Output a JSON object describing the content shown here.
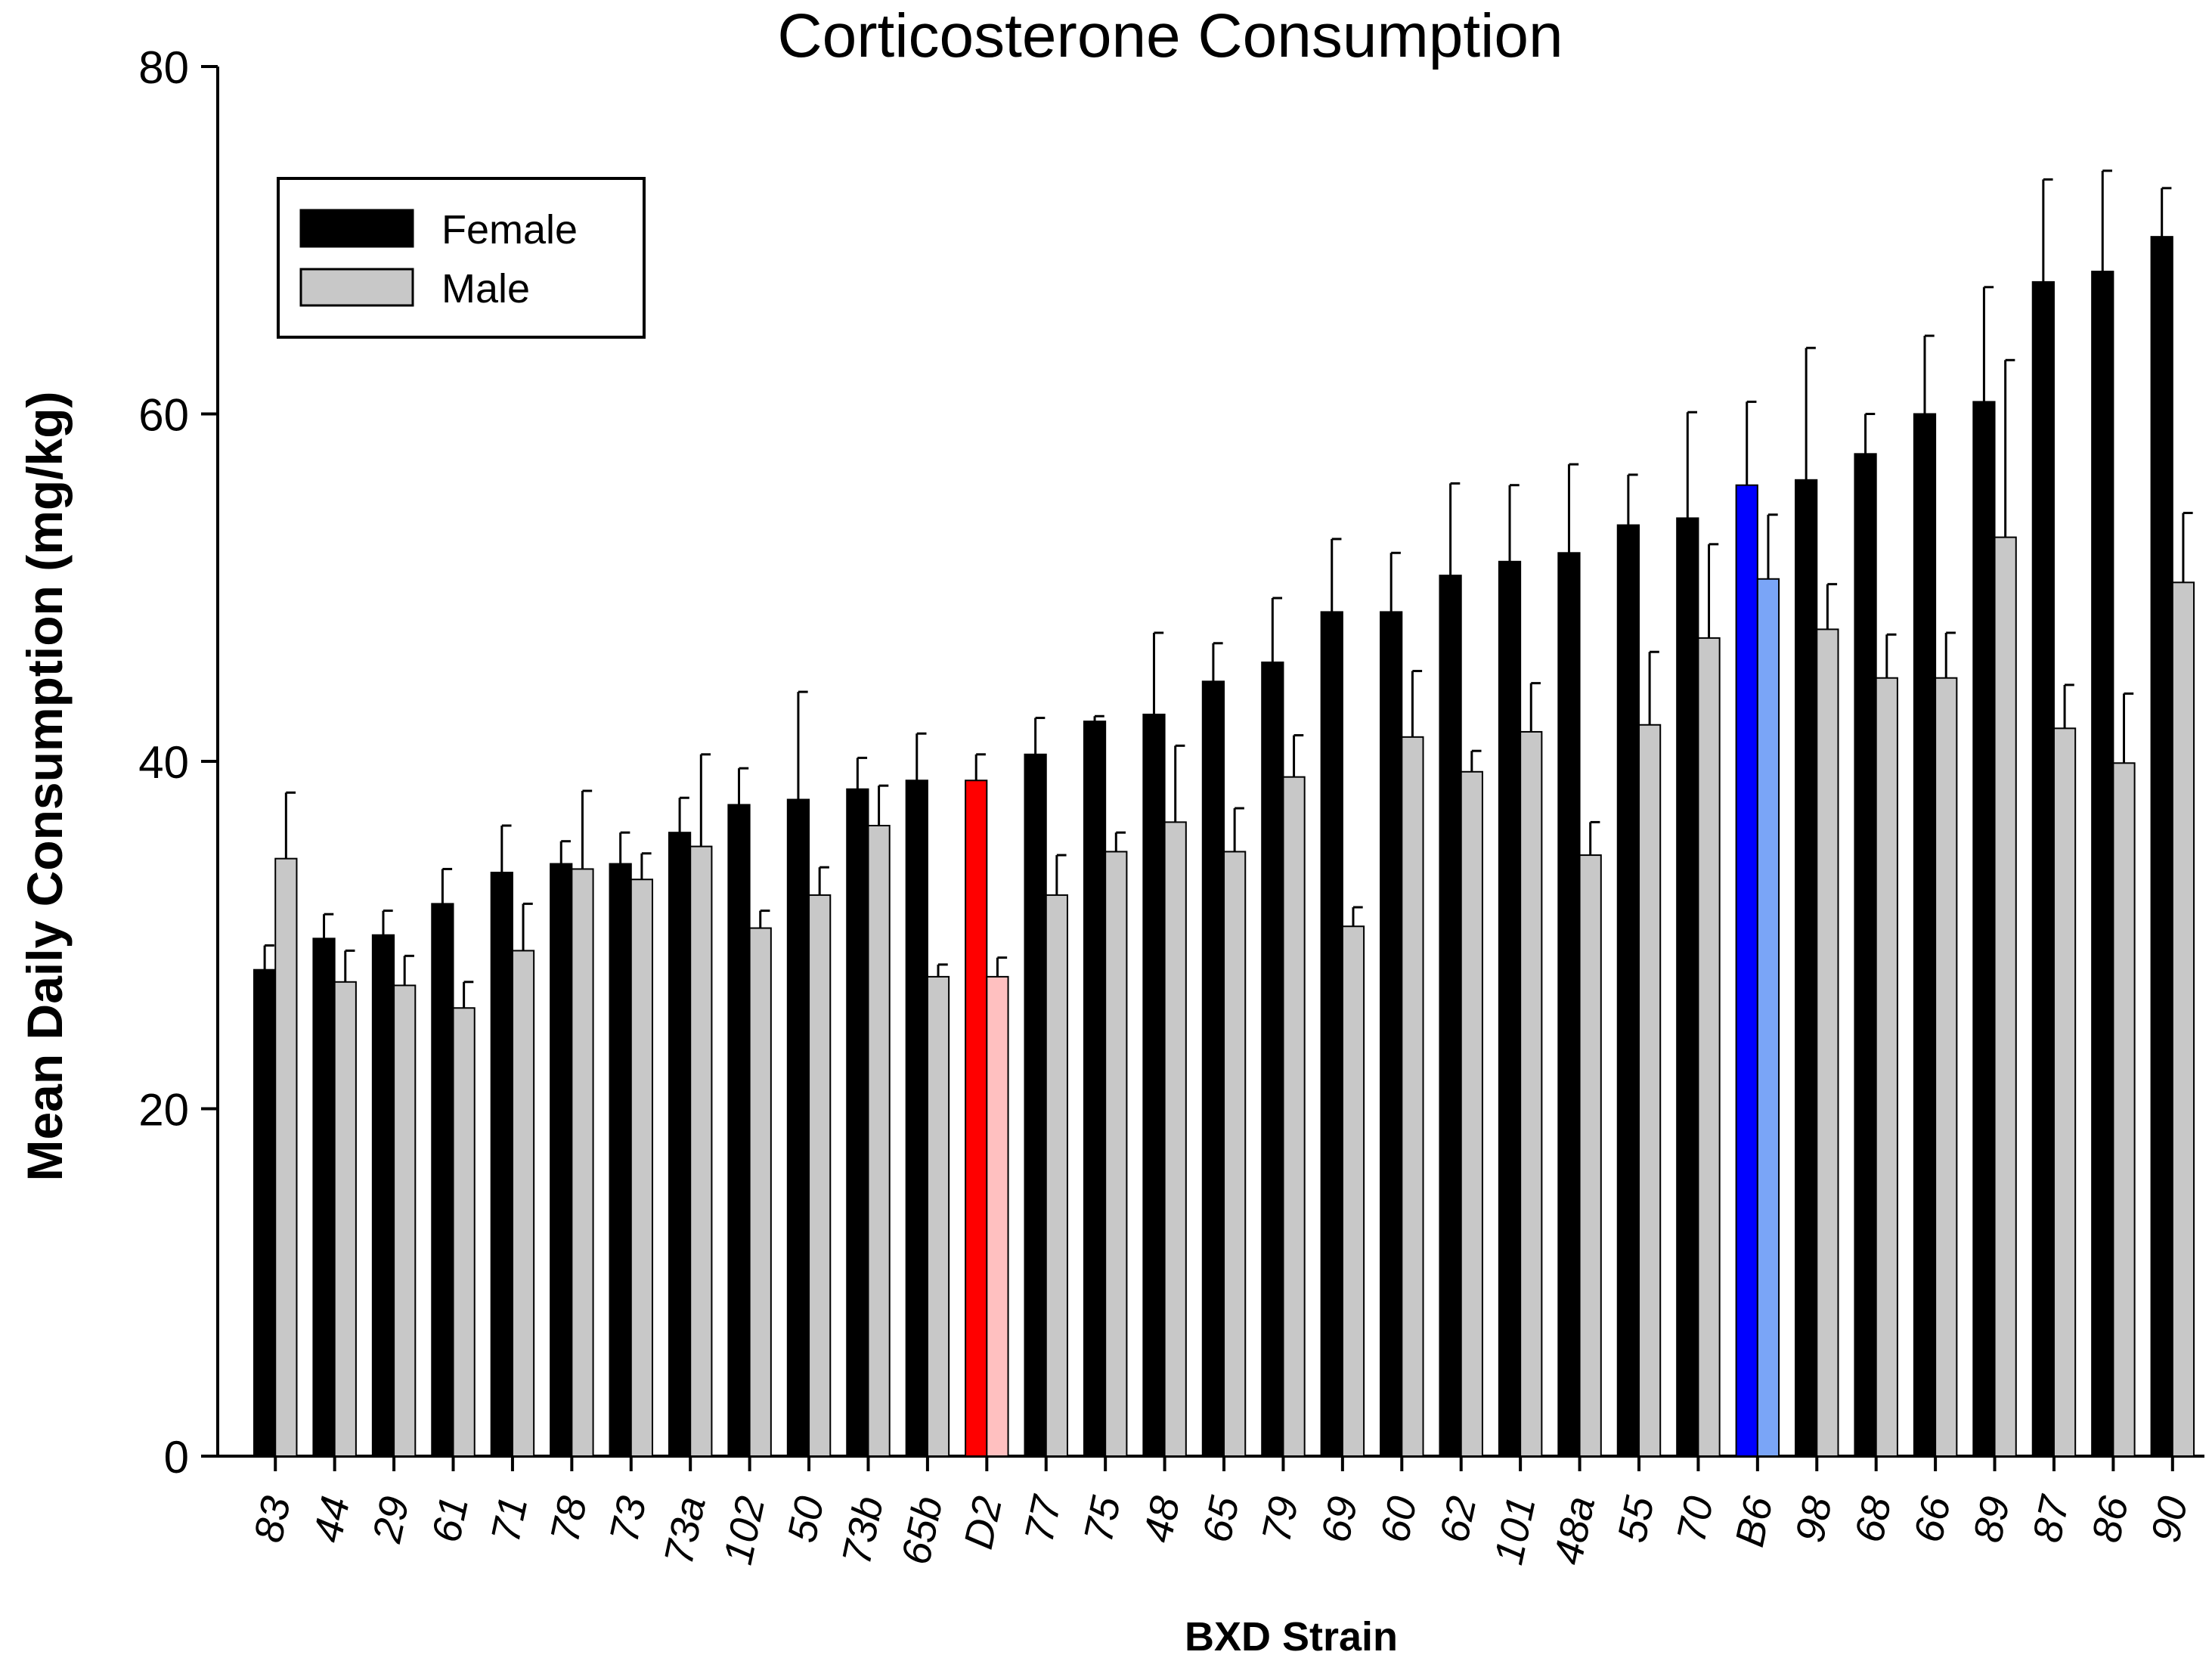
{
  "chart_data": {
    "type": "bar",
    "title": "Corticosterone Consumption",
    "xlabel": "BXD Strain",
    "ylabel": "Mean Daily Consumption (mg/kg)",
    "ylim": [
      0,
      80
    ],
    "yticks": [
      "0",
      "20",
      "40",
      "60",
      "80"
    ],
    "categories": [
      "83",
      "44",
      "29",
      "61",
      "71",
      "78",
      "73",
      "73a",
      "102",
      "50",
      "73b",
      "65b",
      "D2",
      "77",
      "75",
      "48",
      "65",
      "79",
      "69",
      "60",
      "62",
      "101",
      "48a",
      "55",
      "70",
      "B6",
      "98",
      "68",
      "66",
      "89",
      "87",
      "86",
      "90"
    ],
    "series": [
      {
        "name": "Female",
        "color": "#000000",
        "values": [
          28.0,
          29.8,
          30.0,
          31.8,
          33.6,
          34.1,
          34.1,
          35.9,
          37.5,
          37.8,
          38.4,
          38.9,
          38.9,
          40.4,
          42.3,
          42.7,
          44.6,
          45.7,
          48.6,
          48.6,
          50.7,
          51.5,
          52.0,
          53.6,
          54.0,
          55.9,
          56.2,
          57.7,
          60.0,
          60.7,
          67.6,
          68.2,
          70.2
        ],
        "errors": [
          1.4,
          1.4,
          1.4,
          2.0,
          2.7,
          1.3,
          1.8,
          2.0,
          2.1,
          6.2,
          1.8,
          2.7,
          1.5,
          2.1,
          0.3,
          4.7,
          2.2,
          3.7,
          4.2,
          3.4,
          5.3,
          4.4,
          5.1,
          2.9,
          6.1,
          4.8,
          7.6,
          2.3,
          4.5,
          6.6,
          5.9,
          5.8,
          2.8
        ]
      },
      {
        "name": "Male",
        "color": "#c8c8c8",
        "values": [
          34.4,
          27.3,
          27.1,
          25.8,
          29.1,
          33.8,
          33.2,
          35.1,
          30.4,
          32.3,
          36.3,
          27.6,
          27.6,
          32.3,
          34.8,
          36.5,
          34.8,
          39.1,
          30.5,
          41.4,
          39.4,
          41.7,
          34.6,
          42.1,
          47.1,
          50.5,
          47.6,
          44.8,
          44.8,
          52.9,
          41.9,
          39.9,
          50.3
        ],
        "errors": [
          3.8,
          1.8,
          1.7,
          1.5,
          2.7,
          4.5,
          1.5,
          5.3,
          1.0,
          1.6,
          2.3,
          0.7,
          1.1,
          2.3,
          1.1,
          4.4,
          2.5,
          2.4,
          1.1,
          3.8,
          1.2,
          2.8,
          1.9,
          4.2,
          5.4,
          3.7,
          2.6,
          2.5,
          2.6,
          10.2,
          2.5,
          4.0,
          4.0
        ]
      }
    ],
    "highlights": [
      {
        "category": "D2",
        "female_color": "#ff0000",
        "male_color": "#ffc0c0"
      },
      {
        "category": "B6",
        "female_color": "#0000ff",
        "male_color": "#7aa5f7"
      }
    ],
    "legend": {
      "position": "top-left",
      "entries": [
        {
          "label": "Female",
          "color": "#000000"
        },
        {
          "label": "Male",
          "color": "#c8c8c8"
        }
      ]
    }
  }
}
